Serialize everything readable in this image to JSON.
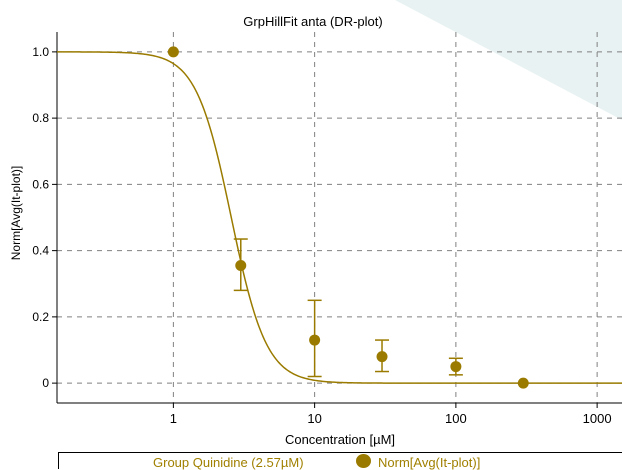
{
  "colors": {
    "series": "#9a7b00",
    "series_fill": "#a08000",
    "axis": "#000000",
    "grid": "#808080",
    "background_wedge": "#e9f2f2"
  },
  "chart_data": {
    "type": "scatter",
    "title": "GrpHillFit  anta (DR-plot)",
    "xlabel": "Concentration [µM]",
    "ylabel": "Norm[Avg(It-plot)]",
    "x_scale": "log",
    "xlim": [
      0.15,
      1500
    ],
    "ylim": [
      -0.06,
      1.06
    ],
    "x_ticks": [
      1,
      10,
      100,
      1000
    ],
    "x_tick_labels": [
      "1",
      "10",
      "100",
      "1000"
    ],
    "y_ticks": [
      0,
      0.2,
      0.4,
      0.6,
      0.8,
      1.0
    ],
    "y_tick_labels": [
      "0",
      "0.2",
      "0.4",
      "0.6",
      "0.8",
      "1.0"
    ],
    "grid": true,
    "legend_position": "bottom",
    "series": [
      {
        "name": "Norm[Avg(It-plot)]",
        "x": [
          1,
          3,
          10,
          30,
          100,
          300
        ],
        "y": [
          1.0,
          0.355,
          0.13,
          0.08,
          0.05,
          0.0
        ],
        "error_low": [
          null,
          0.075,
          0.11,
          0.045,
          0.025,
          null
        ],
        "error_high": [
          null,
          0.08,
          0.12,
          0.05,
          0.025,
          null
        ]
      }
    ],
    "fit": {
      "name": "Group Quinidine (2.57µM)",
      "model": "hill",
      "top": 1.0,
      "bottom": 0.0,
      "ic50": 2.57,
      "hill_slope": 3.5
    }
  }
}
